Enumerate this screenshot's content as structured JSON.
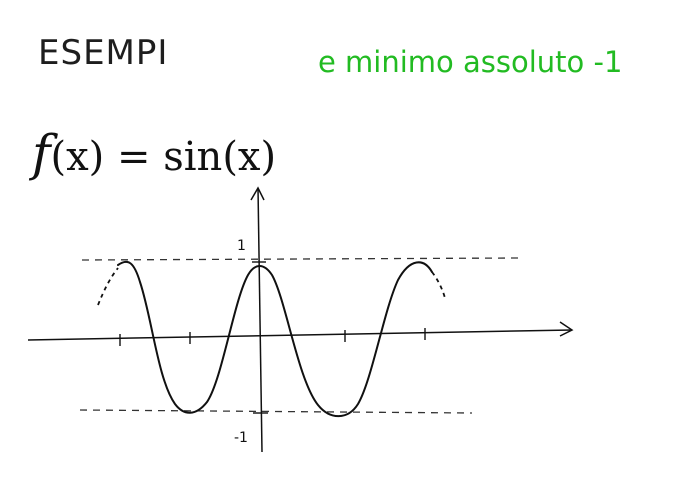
{
  "heading": {
    "title": "ESEMPI",
    "note": "e minimo assoluto -1"
  },
  "formula": {
    "fn": "f",
    "lhs": "(x) = ",
    "rhs": "sin(x)"
  },
  "graph": {
    "function": "sin(x)",
    "ylim": [
      -1,
      1
    ],
    "ytick_labels": [
      "1",
      "-1"
    ],
    "colors": {
      "curve": "#111111",
      "axes": "#111111",
      "bounds": "#333333",
      "note": "#22bb22"
    }
  }
}
